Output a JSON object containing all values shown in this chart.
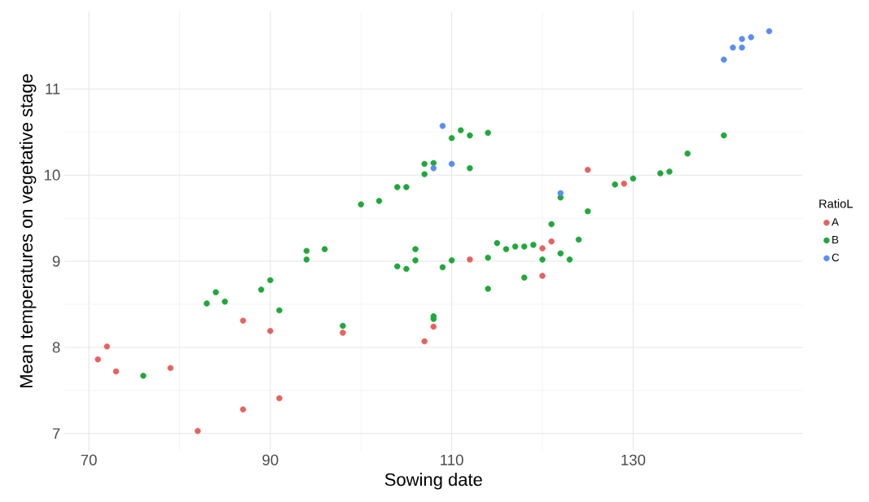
{
  "chart_data": {
    "type": "scatter",
    "xlabel": "Sowing date",
    "ylabel": "Mean temperatures on vegetative stage",
    "legend_title": "RatioL",
    "xlim": [
      67.3,
      148.7
    ],
    "ylim": [
      6.8,
      11.9
    ],
    "xticks": [
      70,
      90,
      110,
      130
    ],
    "yticks": [
      7,
      8,
      9,
      10,
      11
    ],
    "grid": true,
    "legend": "right",
    "marker": "circle",
    "series": [
      {
        "name": "A",
        "color": "#e5625f",
        "x": [
          71,
          72,
          73,
          79,
          82,
          87,
          87,
          90,
          91,
          98,
          107,
          108,
          112,
          120,
          120,
          121,
          125,
          129
        ],
        "values": [
          7.86,
          8.01,
          7.72,
          7.76,
          7.03,
          7.28,
          8.31,
          8.19,
          7.41,
          8.17,
          8.07,
          8.24,
          9.02,
          9.15,
          8.83,
          9.23,
          10.06,
          9.9
        ]
      },
      {
        "name": "B",
        "color": "#1fa83a",
        "x": [
          76,
          83,
          84,
          85,
          89,
          90,
          91,
          94,
          94,
          96,
          98,
          100,
          102,
          104,
          105,
          104,
          105,
          106,
          106,
          107,
          107,
          108,
          108,
          108,
          109,
          110,
          110,
          111,
          112,
          112,
          114,
          114,
          114,
          115,
          116,
          117,
          118,
          118,
          119,
          120,
          121,
          122,
          122,
          123,
          124,
          125,
          128,
          130,
          133,
          134,
          136,
          140
        ],
        "values": [
          7.67,
          8.51,
          8.64,
          8.53,
          8.67,
          8.78,
          8.43,
          9.12,
          9.02,
          9.14,
          8.25,
          9.66,
          9.7,
          9.86,
          9.86,
          8.94,
          8.91,
          9.14,
          9.01,
          10.13,
          10.01,
          10.14,
          8.36,
          8.33,
          8.93,
          9.01,
          10.43,
          10.52,
          10.46,
          10.08,
          10.49,
          9.04,
          8.68,
          9.21,
          9.14,
          9.17,
          9.17,
          8.81,
          9.19,
          9.02,
          9.43,
          9.74,
          9.09,
          9.02,
          9.25,
          9.58,
          9.89,
          9.96,
          10.02,
          10.04,
          10.25,
          10.46
        ]
      },
      {
        "name": "C",
        "color": "#5a8df0",
        "x": [
          108,
          109,
          110,
          122,
          140,
          141,
          142,
          142,
          143,
          145
        ],
        "values": [
          10.08,
          10.57,
          10.13,
          9.79,
          11.34,
          11.48,
          11.48,
          11.58,
          11.6,
          11.67
        ]
      }
    ]
  }
}
